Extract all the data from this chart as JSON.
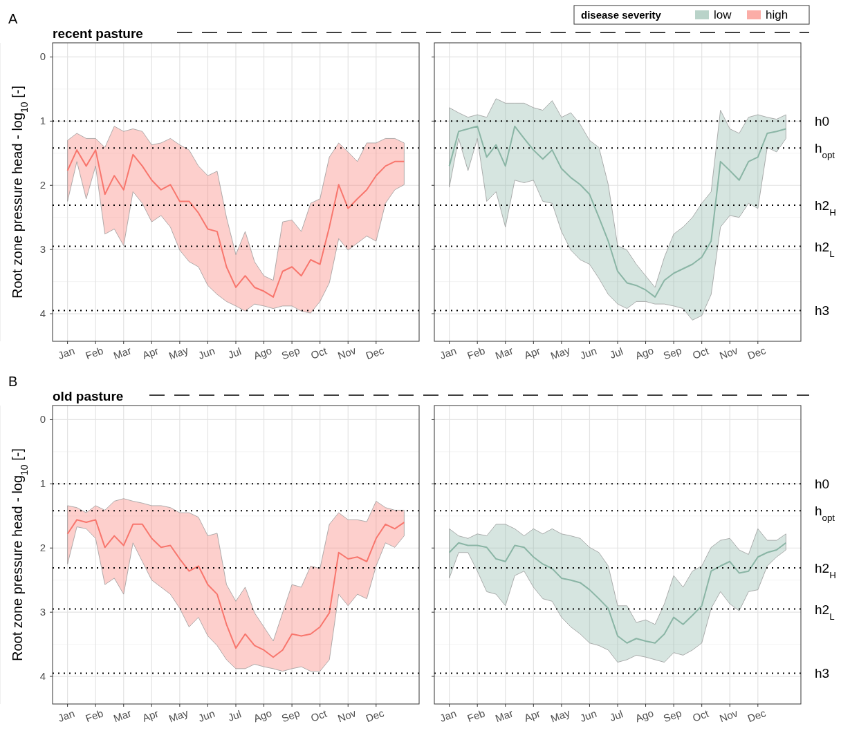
{
  "chart_data": [
    {
      "type": "line",
      "title": "recent pasture",
      "annotations": [
        "A"
      ],
      "ylabel": "Root zone pressure head - log$_{10}$ [-]",
      "tick_labels": "xy",
      "grid": true,
      "legend": "top right",
      "categories": [
        "Jan",
        null,
        null,
        "Feb",
        null,
        null,
        "Mar",
        null,
        null,
        "Apr",
        null,
        null,
        "May",
        null,
        null,
        "Jun",
        null,
        null,
        "Jul",
        null,
        null,
        "Ago",
        null,
        null,
        "Sep",
        null,
        null,
        "Oct",
        null,
        null,
        "Nov",
        null,
        null,
        "Dec",
        null,
        null,
        null
      ],
      "ylim": [
        4.43,
        -0.22
      ],
      "yticks": [
        0,
        1,
        2,
        3,
        4
      ],
      "ref_lines": [
        {
          "axis": "y",
          "value": 1,
          "line_style": "dotted",
          "color": "#000000"
        },
        {
          "axis": "y",
          "value": 1.42,
          "line_style": "dotted",
          "color": "#000000"
        },
        {
          "axis": "y",
          "value": 2.31,
          "line_style": "dotted",
          "color": "#000000"
        },
        {
          "axis": "y",
          "value": 2.95,
          "line_style": "dotted",
          "color": "#000000"
        },
        {
          "axis": "y",
          "value": 3.95,
          "line_style": "dotted",
          "color": "#000000"
        }
      ],
      "series": [
        {
          "name": "high",
          "color": "#f8766d",
          "values": [
            1.77,
            1.45,
            1.7,
            1.45,
            2.14,
            1.85,
            2.07,
            1.52,
            1.7,
            1.92,
            2.07,
            1.99,
            2.25,
            2.25,
            2.43,
            2.68,
            2.72,
            3.27,
            3.59,
            3.41,
            3.59,
            3.65,
            3.74,
            3.34,
            3.27,
            3.41,
            3.16,
            3.23,
            2.65,
            1.99,
            2.36,
            2.21,
            2.07,
            1.85,
            1.7,
            1.63,
            1.63
          ],
          "lower": [
            1.3,
            1.19,
            1.27,
            1.27,
            1.41,
            1.08,
            1.16,
            1.12,
            1.16,
            1.37,
            1.34,
            1.27,
            1.37,
            1.45,
            1.7,
            1.85,
            1.78,
            2.5,
            3.08,
            2.72,
            3.19,
            3.41,
            3.48,
            2.57,
            2.54,
            2.72,
            2.28,
            2.21,
            1.56,
            1.34,
            1.48,
            1.63,
            1.34,
            1.34,
            1.27,
            1.27,
            1.34
          ],
          "upper": [
            2.25,
            1.63,
            2.21,
            1.7,
            2.76,
            2.68,
            2.94,
            2.1,
            2.28,
            2.57,
            2.47,
            2.65,
            3.01,
            3.19,
            3.27,
            3.56,
            3.7,
            3.81,
            3.88,
            3.96,
            3.85,
            3.88,
            3.92,
            3.88,
            3.88,
            3.96,
            3.99,
            3.81,
            3.52,
            2.83,
            3.01,
            2.9,
            2.79,
            2.87,
            2.28,
            2.07,
            1.99
          ]
        }
      ]
    },
    {
      "type": "line",
      "tick_labels": "x",
      "grid": true,
      "legend": "top right",
      "legend_title": "disease severity",
      "categories": [
        "Jan",
        null,
        null,
        "Feb",
        null,
        null,
        "Mar",
        null,
        null,
        "Apr",
        null,
        null,
        "May",
        null,
        null,
        "Jun",
        null,
        null,
        "Jul",
        null,
        null,
        "Ago",
        null,
        null,
        "Sep",
        null,
        null,
        "Oct",
        null,
        null,
        "Nov",
        null,
        null,
        "Dec",
        null,
        null,
        null
      ],
      "ylim": [
        4.43,
        -0.22
      ],
      "yticks": [
        0,
        1,
        2,
        3,
        4
      ],
      "ref_lines": [
        {
          "axis": "y",
          "value": 1,
          "label": "h0",
          "line_style": "dotted",
          "color": "#000000"
        },
        {
          "axis": "y",
          "value": 1.42,
          "label": "h$_{opt}$",
          "line_style": "dotted",
          "color": "#000000"
        },
        {
          "axis": "y",
          "value": 2.31,
          "label": "h2$_{H}$",
          "line_style": "dotted",
          "color": "#000000"
        },
        {
          "axis": "y",
          "value": 2.95,
          "label": "h2$_{L}$",
          "line_style": "dotted",
          "color": "#000000"
        },
        {
          "axis": "y",
          "value": 3.95,
          "label": "h3",
          "line_style": "dotted",
          "color": "#000000"
        }
      ],
      "series": [
        {
          "name": "low",
          "color": "#8ab5a5",
          "values": [
            1.7,
            1.16,
            1.12,
            1.08,
            1.56,
            1.37,
            1.7,
            1.08,
            1.27,
            1.45,
            1.59,
            1.45,
            1.74,
            1.88,
            1.99,
            2.14,
            2.5,
            2.87,
            3.34,
            3.52,
            3.56,
            3.63,
            3.74,
            3.48,
            3.37,
            3.3,
            3.23,
            3.12,
            2.87,
            1.63,
            1.77,
            1.92,
            1.63,
            1.56,
            1.19,
            1.16,
            1.12
          ],
          "lower": [
            0.79,
            0.87,
            0.94,
            0.9,
            0.94,
            0.65,
            0.72,
            0.72,
            0.72,
            0.79,
            0.83,
            0.68,
            0.94,
            0.87,
            1.05,
            1.3,
            1.41,
            1.99,
            2.94,
            3.01,
            3.23,
            3.41,
            3.59,
            3.12,
            2.76,
            2.65,
            2.5,
            2.28,
            2.1,
            0.83,
            1.12,
            1.19,
            0.94,
            0.9,
            0.94,
            0.97,
            0.9
          ],
          "upper": [
            2.03,
            1.27,
            1.77,
            1.27,
            2.25,
            2.1,
            2.65,
            1.92,
            1.96,
            1.92,
            2.25,
            2.28,
            2.72,
            3.01,
            3.16,
            3.23,
            3.45,
            3.7,
            3.85,
            3.92,
            3.81,
            3.81,
            3.85,
            3.85,
            3.88,
            3.92,
            4.1,
            4.03,
            3.7,
            2.65,
            2.47,
            2.5,
            2.28,
            2.36,
            1.41,
            1.48,
            1.27
          ]
        }
      ]
    },
    {
      "type": "line",
      "title": "old pasture",
      "annotations": [
        "B"
      ],
      "ylabel": "Root zone pressure head - log$_{10}$ [-]",
      "grid": true,
      "categories": [
        "Jan",
        null,
        null,
        "Feb",
        null,
        null,
        "Mar",
        null,
        null,
        "Apr",
        null,
        null,
        "May",
        null,
        null,
        "Jun",
        null,
        null,
        "Jul",
        null,
        null,
        "Ago",
        null,
        null,
        "Sep",
        null,
        null,
        "Oct",
        null,
        null,
        "Nov",
        null,
        null,
        "Dec",
        null,
        null,
        null
      ],
      "ylim": [
        4.43,
        -0.22
      ],
      "yticks": [
        0,
        1,
        2,
        3,
        4
      ],
      "ref_lines": [
        {
          "axis": "y",
          "value": 1,
          "line_style": "dotted",
          "color": "#000000"
        },
        {
          "axis": "y",
          "value": 1.42,
          "line_style": "dotted",
          "color": "#000000"
        },
        {
          "axis": "y",
          "value": 2.31,
          "line_style": "dotted",
          "color": "#000000"
        },
        {
          "axis": "y",
          "value": 2.95,
          "line_style": "dotted",
          "color": "#000000"
        },
        {
          "axis": "y",
          "value": 3.95,
          "line_style": "dotted",
          "color": "#000000"
        }
      ],
      "series": [
        {
          "color": "#f8766d",
          "values": [
            1.78,
            1.56,
            1.6,
            1.56,
            1.99,
            1.81,
            1.96,
            1.63,
            1.63,
            1.85,
            1.99,
            1.96,
            2.17,
            2.36,
            2.28,
            2.57,
            2.72,
            3.19,
            3.56,
            3.34,
            3.52,
            3.59,
            3.7,
            3.59,
            3.34,
            3.37,
            3.34,
            3.23,
            3.01,
            2.07,
            2.17,
            2.14,
            2.21,
            1.85,
            1.63,
            1.7,
            1.6
          ],
          "lower": [
            1.34,
            1.37,
            1.45,
            1.34,
            1.41,
            1.27,
            1.23,
            1.27,
            1.3,
            1.34,
            1.34,
            1.37,
            1.45,
            1.45,
            1.52,
            1.81,
            1.77,
            2.57,
            2.83,
            2.61,
            3.01,
            3.23,
            3.45,
            3.01,
            2.57,
            2.61,
            2.28,
            2.32,
            1.63,
            1.45,
            1.56,
            1.56,
            1.59,
            1.27,
            1.37,
            1.41,
            1.41
          ],
          "upper": [
            2.25,
            1.67,
            1.7,
            1.85,
            2.57,
            2.47,
            2.72,
            1.92,
            2.21,
            2.5,
            2.61,
            2.72,
            2.94,
            3.23,
            3.08,
            3.37,
            3.52,
            3.74,
            3.88,
            3.88,
            3.81,
            3.85,
            3.88,
            3.92,
            3.88,
            3.85,
            3.92,
            3.92,
            3.74,
            2.72,
            2.9,
            2.72,
            2.79,
            2.28,
            1.92,
            1.99,
            1.81
          ]
        }
      ]
    },
    {
      "type": "line",
      "tick_labels": "x",
      "grid": true,
      "categories": [
        "Jan",
        null,
        null,
        "Feb",
        null,
        null,
        "Mar",
        null,
        null,
        "Apr",
        null,
        null,
        "May",
        null,
        null,
        "Jun",
        null,
        null,
        "Jul",
        null,
        null,
        "Ago",
        null,
        null,
        "Sep",
        null,
        null,
        "Oct",
        null,
        null,
        "Nov",
        null,
        null,
        "Dec",
        null,
        null,
        null
      ],
      "ylim": [
        4.43,
        -0.22
      ],
      "yticks": [
        0,
        1,
        2,
        3,
        4
      ],
      "ref_lines": [
        {
          "axis": "y",
          "value": 1,
          "label": "h0",
          "line_style": "dotted",
          "color": "#000000"
        },
        {
          "axis": "y",
          "value": 1.42,
          "label": "h$_{opt}$",
          "line_style": "dotted",
          "color": "#000000"
        },
        {
          "axis": "y",
          "value": 2.31,
          "label": "h2$_{H}$",
          "line_style": "dotted",
          "color": "#000000"
        },
        {
          "axis": "y",
          "value": 2.95,
          "label": "h2$_{L}$",
          "line_style": "dotted",
          "color": "#000000"
        },
        {
          "axis": "y",
          "value": 3.95,
          "label": "h3",
          "line_style": "dotted",
          "color": "#000000"
        }
      ],
      "series": [
        {
          "color": "#8ab5a5",
          "values": [
            2.07,
            1.92,
            1.96,
            1.96,
            1.99,
            2.17,
            2.21,
            1.96,
            1.99,
            2.14,
            2.25,
            2.32,
            2.47,
            2.5,
            2.54,
            2.65,
            2.79,
            2.94,
            3.37,
            3.48,
            3.41,
            3.45,
            3.48,
            3.34,
            3.08,
            3.19,
            3.05,
            2.9,
            2.36,
            2.28,
            2.21,
            2.39,
            2.36,
            2.14,
            2.07,
            2.03,
            1.92
          ],
          "lower": [
            1.7,
            1.81,
            1.85,
            1.78,
            1.81,
            1.63,
            1.63,
            1.7,
            1.81,
            1.7,
            1.78,
            1.7,
            1.78,
            1.81,
            1.85,
            1.99,
            2.07,
            2.28,
            2.9,
            2.9,
            3.16,
            3.12,
            3.19,
            2.87,
            2.43,
            2.61,
            2.36,
            2.28,
            1.99,
            1.88,
            1.85,
            2.03,
            2.1,
            1.7,
            1.88,
            1.88,
            1.78
          ],
          "upper": [
            2.47,
            2.07,
            2.07,
            2.36,
            2.68,
            2.72,
            2.9,
            2.43,
            2.36,
            2.61,
            2.79,
            2.83,
            3.08,
            3.23,
            3.34,
            3.48,
            3.52,
            3.59,
            3.78,
            3.74,
            3.67,
            3.7,
            3.74,
            3.78,
            3.63,
            3.67,
            3.59,
            3.48,
            2.94,
            2.68,
            2.87,
            2.98,
            2.68,
            2.65,
            2.28,
            2.14,
            2.03
          ]
        }
      ]
    }
  ]
}
